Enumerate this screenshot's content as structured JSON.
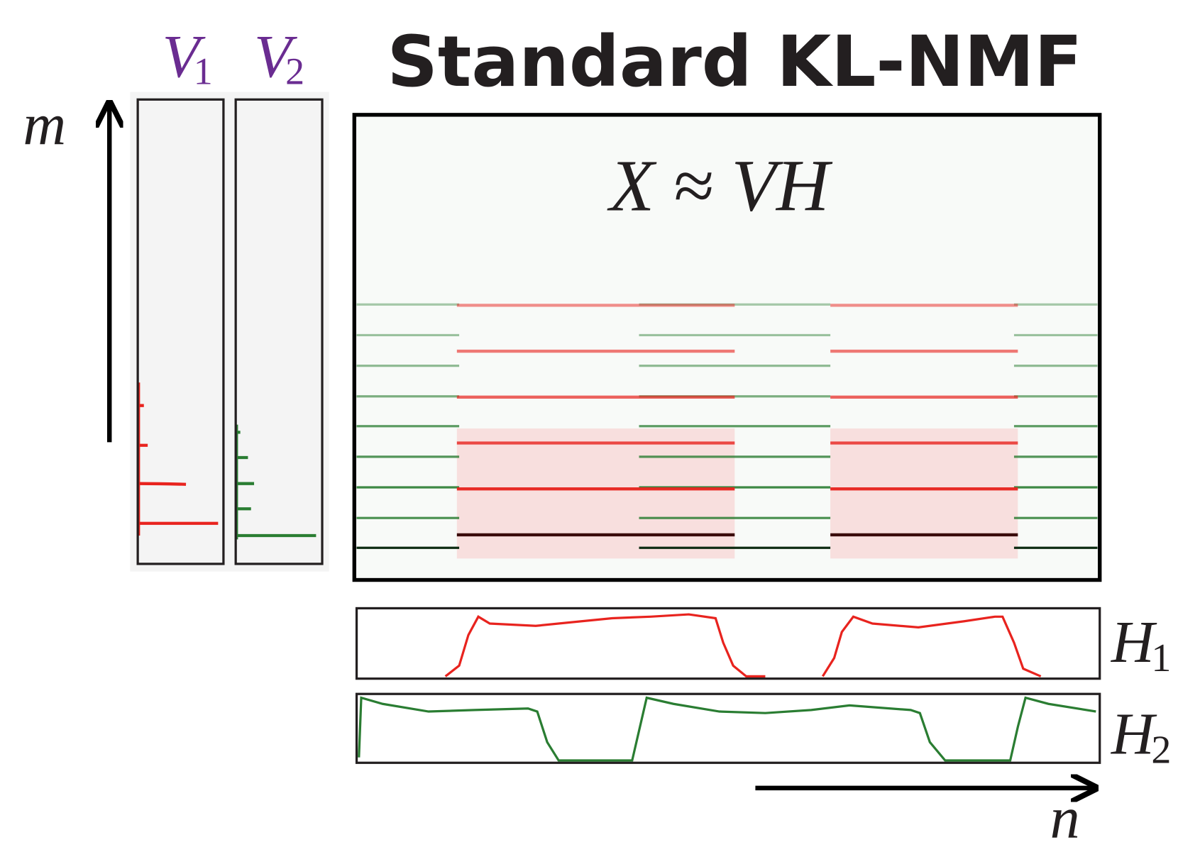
{
  "title": "Standard KL-NMF",
  "equation": "X ≈ VH",
  "axes": {
    "vertical": "m",
    "horizontal": "n"
  },
  "templates": [
    {
      "symbol": "V",
      "subscript": "1"
    },
    {
      "symbol": "V",
      "subscript": "2"
    }
  ],
  "activations": [
    {
      "symbol": "H",
      "subscript": "1"
    },
    {
      "symbol": "H",
      "subscript": "2"
    }
  ]
}
